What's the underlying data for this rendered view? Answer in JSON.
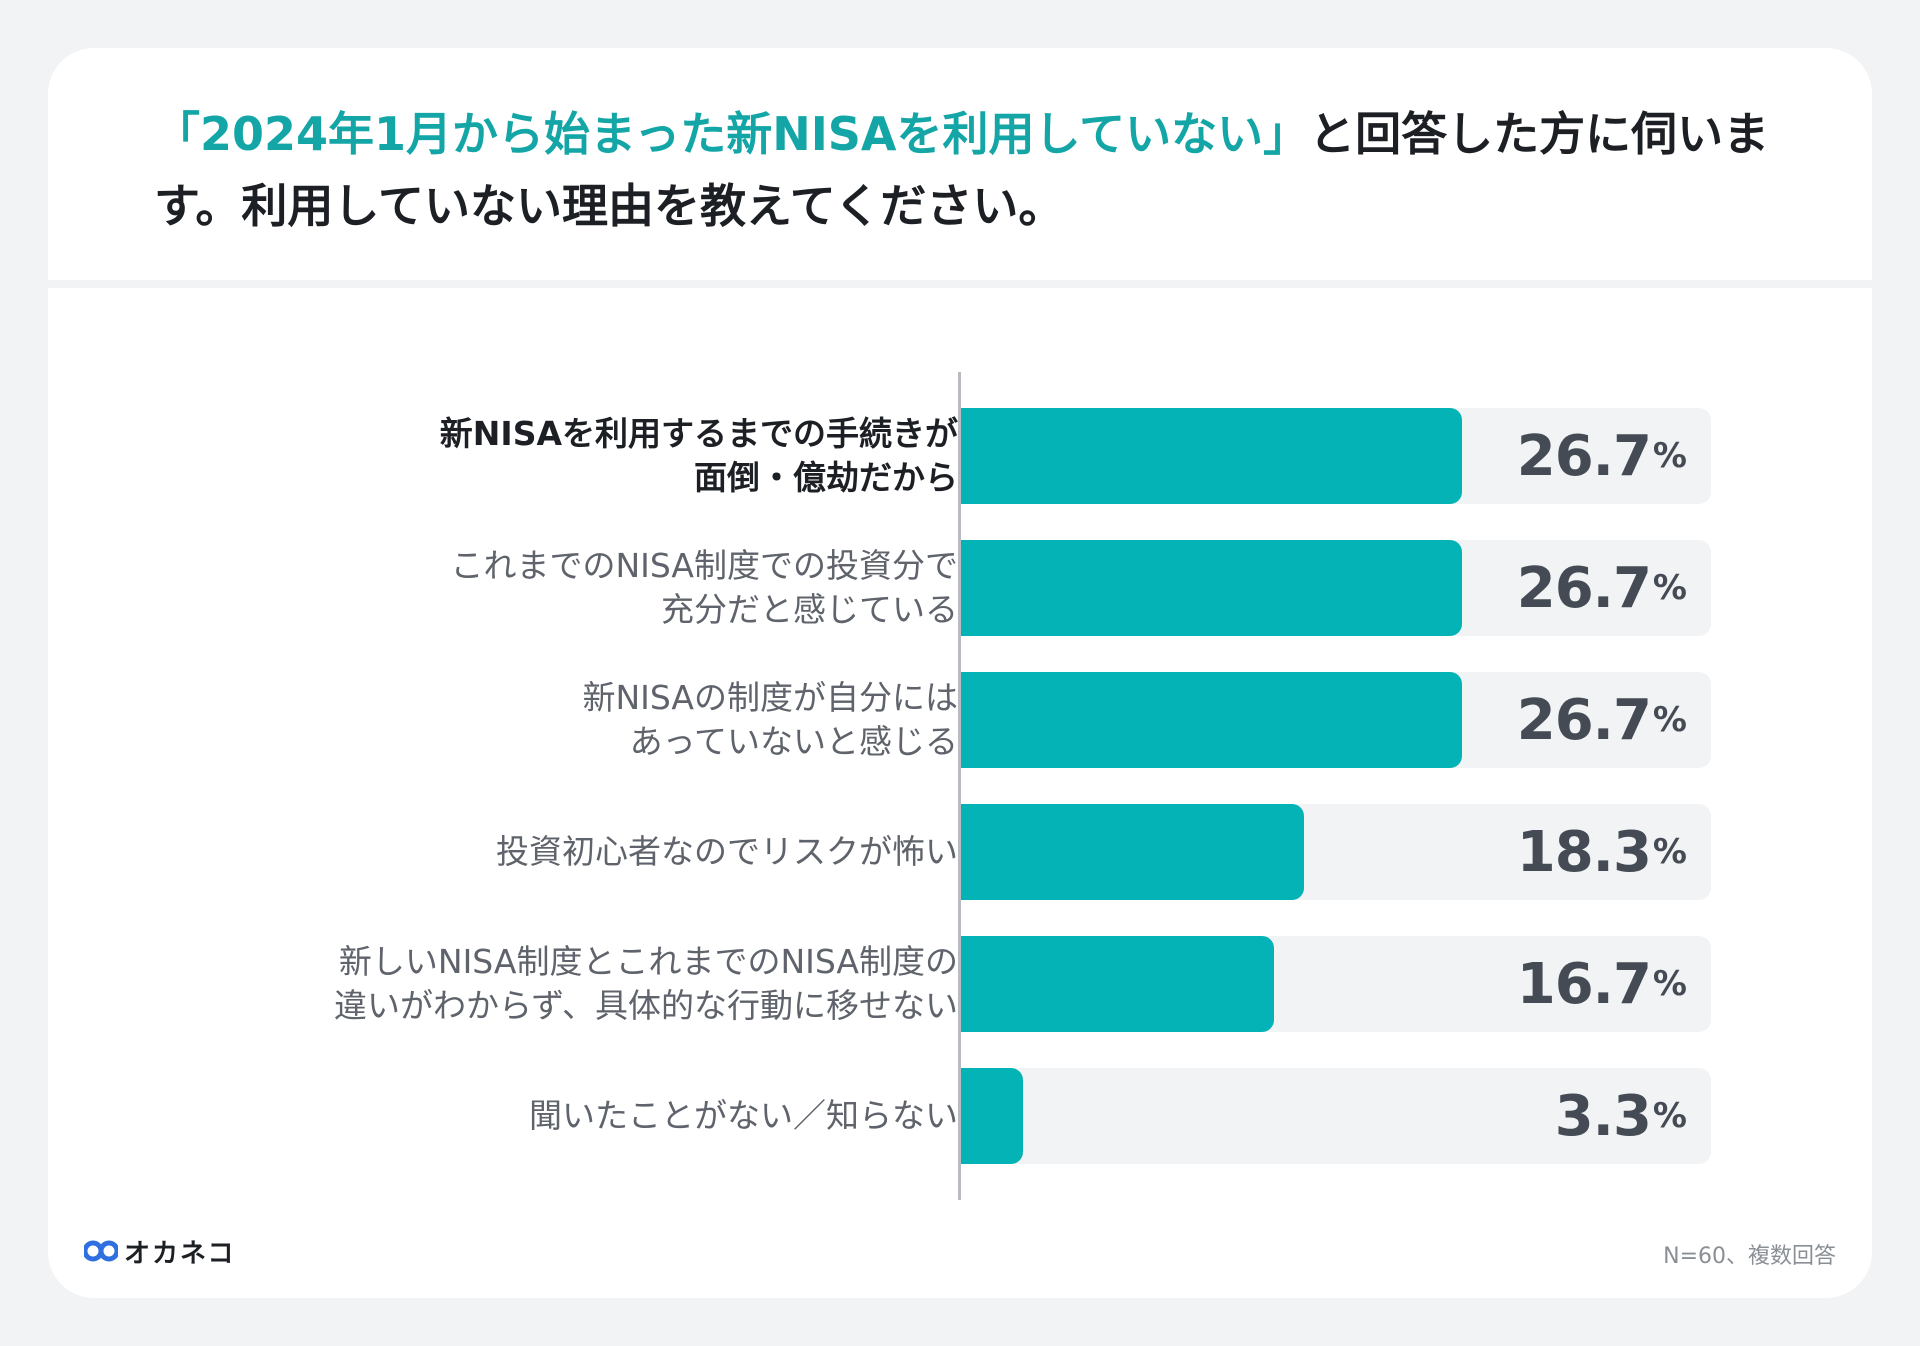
{
  "header": {
    "title_highlight": "「2024年1月から始まった新NISAを利用していない」",
    "title_rest": "と回答した方に伺います。利用していない理由を教えてください。"
  },
  "chart_data": {
    "type": "bar",
    "orientation": "horizontal",
    "title": "「2024年1月から始まった新NISAを利用していない」と回答した方に伺います。利用していない理由を教えてください。",
    "categories": [
      "新NISAを利用するまでの手続きが\n面倒・億劫だから",
      "これまでのNISA制度での投資分で\n充分だと感じている",
      "新NISAの制度が自分には\nあっていないと感じる",
      "投資初心者なのでリスクが怖い",
      "新しいNISA制度とこれまでのNISA制度の\n違いがわからず、具体的な行動に移せない",
      "聞いたことがない／知らない"
    ],
    "values": [
      26.7,
      26.7,
      26.7,
      18.3,
      16.7,
      3.3
    ],
    "value_labels": [
      "26.7",
      "26.7",
      "26.7",
      "18.3",
      "16.7",
      "3.3"
    ],
    "unit": "%",
    "xlim": [
      0,
      40
    ],
    "grid": false,
    "colors": {
      "bar": "#04b3b5",
      "track": "#f2f3f5",
      "highlight": "#14a6a6"
    }
  },
  "footer": {
    "brand": "オカネコ",
    "note": "N=60、複数回答"
  }
}
